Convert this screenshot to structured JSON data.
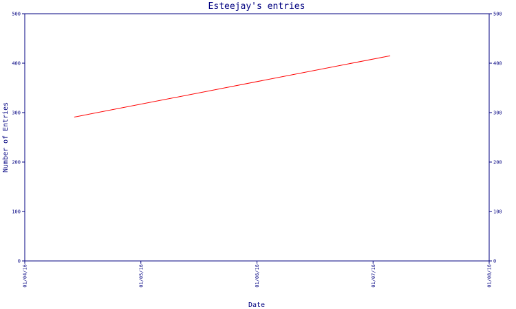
{
  "chart_data": {
    "type": "line",
    "title": "Esteejay's entries",
    "xlabel": "Date",
    "ylabel": "Number of Entries",
    "x_tick_labels": [
      "01/04/16",
      "01/05/16",
      "01/06/16",
      "01/07/16",
      "01/08/16"
    ],
    "xlim": [
      "2016-04-01",
      "2016-08-01"
    ],
    "ylim": [
      0,
      500
    ],
    "y_ticks": [
      0,
      100,
      200,
      300,
      400,
      500
    ],
    "grid": false,
    "legend": "none",
    "series": [
      {
        "color": "#ff0000",
        "points": [
          {
            "x": "2016-04-14",
            "y": 291
          },
          {
            "x": "2016-07-06",
            "y": 415
          }
        ]
      }
    ],
    "colors": {
      "axis": "#000080",
      "line": "#ff0000",
      "background": "#ffffff"
    }
  }
}
